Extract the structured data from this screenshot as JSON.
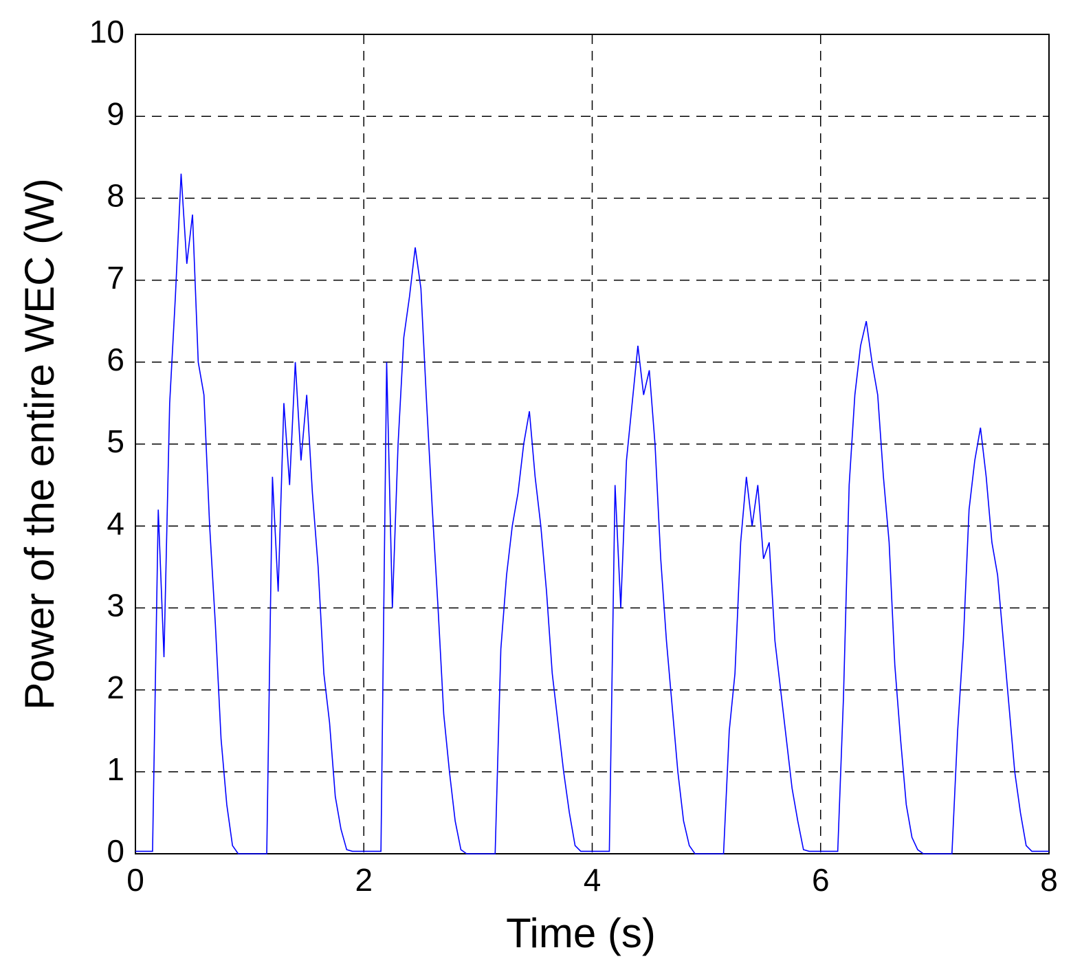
{
  "chart_data": {
    "type": "line",
    "xlabel": "Time  (s)",
    "ylabel": "Power of the entire WEC  (W)",
    "xlim": [
      0,
      8
    ],
    "xticks": [
      0,
      2,
      4,
      6,
      8
    ],
    "ylim": [
      0,
      10
    ],
    "yticks": [
      0,
      1,
      2,
      3,
      4,
      5,
      6,
      7,
      8,
      9,
      10
    ],
    "grid": true,
    "x": [
      0,
      0.05,
      0.1,
      0.15,
      0.2,
      0.25,
      0.3,
      0.35,
      0.4,
      0.45,
      0.5,
      0.55,
      0.6,
      0.65,
      0.7,
      0.75,
      0.8,
      0.85,
      0.9,
      0.95,
      1,
      1.05,
      1.1,
      1.15,
      1.2,
      1.25,
      1.3,
      1.35,
      1.4,
      1.45,
      1.5,
      1.55,
      1.6,
      1.65,
      1.7,
      1.75,
      1.8,
      1.85,
      1.9,
      1.95,
      2,
      2.05,
      2.1,
      2.15,
      2.2,
      2.25,
      2.3,
      2.35,
      2.4,
      2.45,
      2.5,
      2.55,
      2.6,
      2.65,
      2.7,
      2.75,
      2.8,
      2.85,
      2.9,
      2.95,
      3,
      3.05,
      3.1,
      3.15,
      3.2,
      3.25,
      3.3,
      3.35,
      3.4,
      3.45,
      3.5,
      3.55,
      3.6,
      3.65,
      3.7,
      3.75,
      3.8,
      3.85,
      3.9,
      3.95,
      4,
      4.05,
      4.1,
      4.15,
      4.2,
      4.25,
      4.3,
      4.35,
      4.4,
      4.45,
      4.5,
      4.55,
      4.6,
      4.65,
      4.7,
      4.75,
      4.8,
      4.85,
      4.9,
      4.95,
      5,
      5.05,
      5.1,
      5.15,
      5.2,
      5.25,
      5.3,
      5.35,
      5.4,
      5.45,
      5.5,
      5.55,
      5.6,
      5.65,
      5.7,
      5.75,
      5.8,
      5.85,
      5.9,
      5.95,
      6,
      6.05,
      6.1,
      6.15,
      6.2,
      6.25,
      6.3,
      6.35,
      6.4,
      6.45,
      6.5,
      6.55,
      6.6,
      6.65,
      6.7,
      6.75,
      6.8,
      6.85,
      6.9,
      6.95,
      7,
      7.05,
      7.1,
      7.15,
      7.2,
      7.25,
      7.3,
      7.35,
      7.4,
      7.45,
      7.5,
      7.55,
      7.6,
      7.65,
      7.7,
      7.75,
      7.8,
      7.85,
      7.9,
      7.95,
      8
    ],
    "series": [
      {
        "color": "#0000ff",
        "values": [
          0.03,
          0.03,
          0.03,
          0.03,
          4.2,
          2.4,
          5.5,
          6.8,
          8.3,
          7.2,
          7.8,
          6.0,
          5.6,
          4.0,
          2.8,
          1.4,
          0.6,
          0.1,
          0,
          0,
          0,
          0,
          0,
          0,
          4.6,
          3.2,
          5.5,
          4.5,
          6.0,
          4.8,
          5.6,
          4.4,
          3.5,
          2.2,
          1.6,
          0.7,
          0.3,
          0.05,
          0.03,
          0.03,
          0.03,
          0.03,
          0.03,
          0.03,
          6.0,
          3.0,
          5.0,
          6.3,
          6.8,
          7.4,
          6.9,
          5.5,
          4.2,
          3.0,
          1.7,
          1.0,
          0.4,
          0.05,
          0,
          0,
          0,
          0,
          0,
          0,
          2.5,
          3.4,
          4.0,
          4.4,
          5.0,
          5.4,
          4.6,
          4.0,
          3.2,
          2.2,
          1.6,
          1.0,
          0.5,
          0.1,
          0.03,
          0.03,
          0.03,
          0.03,
          0.03,
          0.03,
          4.5,
          3.0,
          4.8,
          5.5,
          6.2,
          5.6,
          5.9,
          5.0,
          3.6,
          2.6,
          1.8,
          1.0,
          0.4,
          0.1,
          0,
          0,
          0,
          0,
          0,
          0,
          1.5,
          2.2,
          3.8,
          4.6,
          4.0,
          4.5,
          3.6,
          3.8,
          2.6,
          2.0,
          1.4,
          0.8,
          0.4,
          0.05,
          0.03,
          0.03,
          0.03,
          0.03,
          0.03,
          0.03,
          1.9,
          4.5,
          5.6,
          6.2,
          6.5,
          6.0,
          5.6,
          4.6,
          3.8,
          2.3,
          1.4,
          0.6,
          0.2,
          0.05,
          0,
          0,
          0,
          0,
          0,
          0,
          1.5,
          2.6,
          4.2,
          4.8,
          5.2,
          4.6,
          3.8,
          3.4,
          2.6,
          1.8,
          1.0,
          0.5,
          0.1,
          0.03,
          0.03,
          0.03,
          0.03
        ]
      }
    ]
  }
}
